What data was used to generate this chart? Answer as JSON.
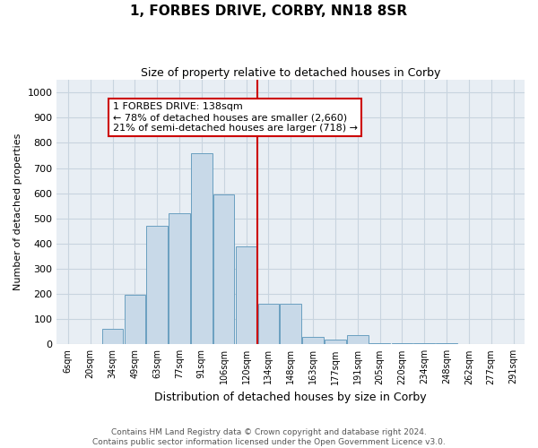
{
  "title": "1, FORBES DRIVE, CORBY, NN18 8SR",
  "subtitle": "Size of property relative to detached houses in Corby",
  "xlabel": "Distribution of detached houses by size in Corby",
  "ylabel": "Number of detached properties",
  "categories": [
    "6sqm",
    "20sqm",
    "34sqm",
    "49sqm",
    "63sqm",
    "77sqm",
    "91sqm",
    "106sqm",
    "120sqm",
    "134sqm",
    "148sqm",
    "163sqm",
    "177sqm",
    "191sqm",
    "205sqm",
    "220sqm",
    "234sqm",
    "248sqm",
    "262sqm",
    "277sqm",
    "291sqm"
  ],
  "values": [
    0,
    0,
    60,
    195,
    470,
    520,
    760,
    595,
    390,
    160,
    160,
    30,
    20,
    35,
    5,
    5,
    5,
    5,
    0,
    0,
    0
  ],
  "bar_color": "#c8d9e8",
  "bar_edge_color": "#6a9fc0",
  "property_line_x": 8.5,
  "annotation_text": "1 FORBES DRIVE: 138sqm\n← 78% of detached houses are smaller (2,660)\n21% of semi-detached houses are larger (718) →",
  "annotation_box_color": "#ffffff",
  "annotation_box_edge_color": "#cc0000",
  "vline_color": "#cc0000",
  "grid_color": "#c8d4df",
  "background_color": "#e8eef4",
  "footer_text": "Contains HM Land Registry data © Crown copyright and database right 2024.\nContains public sector information licensed under the Open Government Licence v3.0.",
  "ylim": [
    0,
    1050
  ],
  "yticks": [
    0,
    100,
    200,
    300,
    400,
    500,
    600,
    700,
    800,
    900,
    1000
  ],
  "title_fontsize": 11,
  "subtitle_fontsize": 9
}
